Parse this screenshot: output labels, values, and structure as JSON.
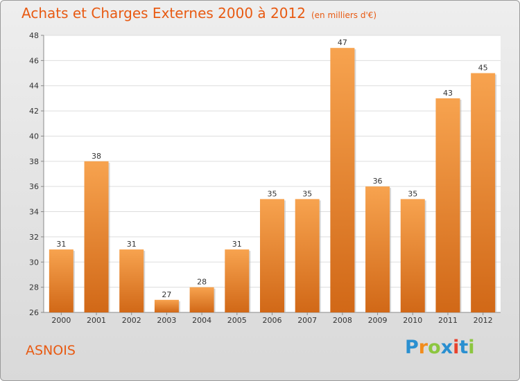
{
  "title": "Achats et Charges Externes 2000 à 2012",
  "subtitle": "(en milliers d'€)",
  "place_label": "ASNOIS",
  "logo": {
    "text": "Proxiti",
    "letters": [
      "P",
      "r",
      "o",
      "x",
      "i",
      "t",
      "i"
    ],
    "colors": [
      "#2a8fd0",
      "#f28c1c",
      "#8cc63f",
      "#2a8fd0",
      "#e8412c",
      "#2a8fd0",
      "#8cc63f"
    ]
  },
  "colors": {
    "accent": "#e85a12",
    "bar_light": "#f7a04c",
    "bar_dark": "#d46b1a"
  },
  "chart_data": {
    "type": "bar",
    "categories": [
      "2000",
      "2001",
      "2002",
      "2003",
      "2004",
      "2005",
      "2006",
      "2007",
      "2008",
      "2009",
      "2010",
      "2011",
      "2012"
    ],
    "values": [
      31,
      38,
      31,
      27,
      28,
      31,
      35,
      35,
      47,
      36,
      35,
      43,
      45
    ],
    "ylim": [
      26,
      48
    ],
    "yticks": [
      26,
      28,
      30,
      32,
      34,
      36,
      38,
      40,
      42,
      44,
      46,
      48
    ],
    "grid": true
  }
}
